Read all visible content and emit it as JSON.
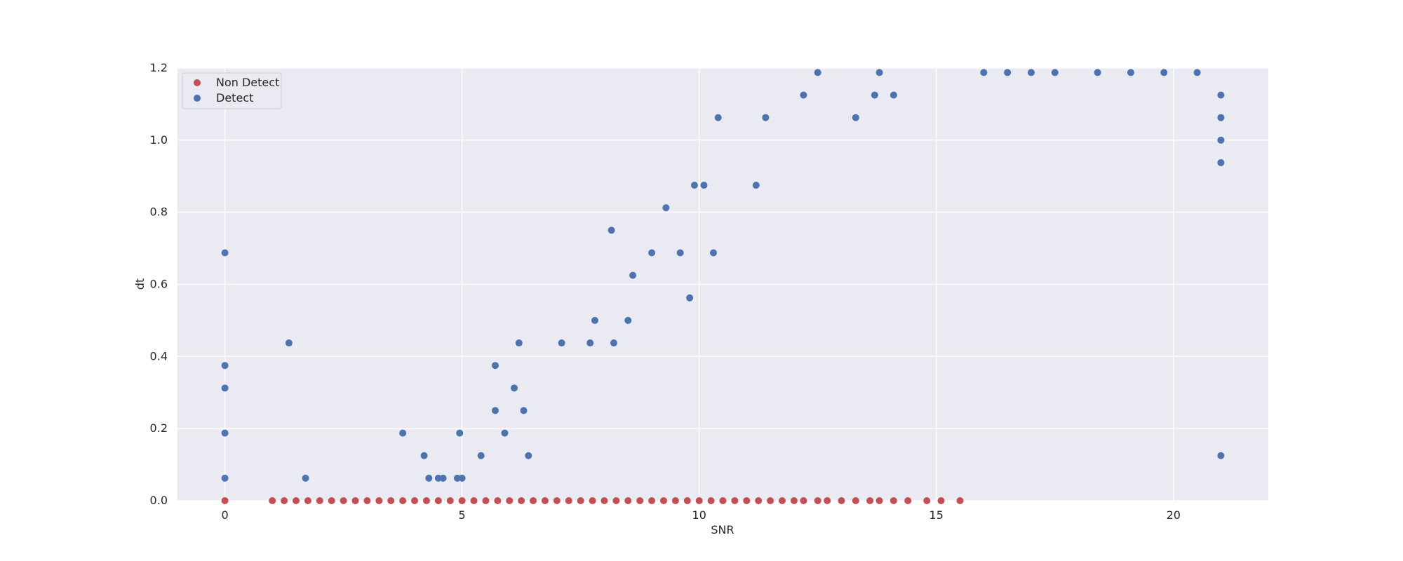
{
  "chart_data": {
    "type": "scatter",
    "title": "",
    "xlabel": "SNR",
    "ylabel": "dt",
    "xlim": [
      -1,
      22
    ],
    "ylim": [
      0,
      1.2
    ],
    "x_ticks": [
      0,
      5,
      10,
      15,
      20
    ],
    "y_ticks": [
      0.0,
      0.2,
      0.4,
      0.6,
      0.8,
      1.0,
      1.2
    ],
    "x_tick_labels": [
      "0",
      "5",
      "10",
      "15",
      "20"
    ],
    "y_tick_labels": [
      "0.0",
      "0.2",
      "0.4",
      "0.6",
      "0.8",
      "1.0",
      "1.2"
    ],
    "grid": true,
    "legend_position": "top-left",
    "colors": {
      "plot_background": "#eaeaf2",
      "grid": "#ffffff",
      "non_detect": "#c44e52",
      "detect": "#4c72b0"
    },
    "series": [
      {
        "name": "Non Detect",
        "color": "#c44e52",
        "x": [
          0,
          1,
          1.25,
          1.5,
          1.75,
          2,
          2.25,
          2.5,
          2.75,
          3,
          3.25,
          3.5,
          3.75,
          4,
          4.25,
          4.5,
          4.75,
          5,
          5.25,
          5.5,
          5.75,
          6,
          6.25,
          6.5,
          6.75,
          7,
          7.25,
          7.5,
          7.75,
          8,
          8.25,
          8.5,
          8.75,
          9,
          9.25,
          9.5,
          9.75,
          10,
          10.25,
          10.5,
          10.75,
          11,
          11.25,
          11.5,
          11.75,
          12,
          12.2,
          12.5,
          12.7,
          13,
          13.3,
          13.6,
          13.8,
          14.1,
          14.4,
          14.8,
          15.1,
          15.5
        ],
        "y": [
          0,
          0,
          0,
          0,
          0,
          0,
          0,
          0,
          0,
          0,
          0,
          0,
          0,
          0,
          0,
          0,
          0,
          0,
          0,
          0,
          0,
          0,
          0,
          0,
          0,
          0,
          0,
          0,
          0,
          0,
          0,
          0,
          0,
          0,
          0,
          0,
          0,
          0,
          0,
          0,
          0,
          0,
          0,
          0,
          0,
          0,
          0,
          0,
          0,
          0,
          0,
          0,
          0,
          0,
          0,
          0,
          0,
          0
        ]
      },
      {
        "name": "Detect",
        "color": "#4c72b0",
        "x": [
          0,
          0,
          0,
          0,
          0,
          1.35,
          1.7,
          3.75,
          4.2,
          4.3,
          4.5,
          4.6,
          4.9,
          5.0,
          4.95,
          5.4,
          5.7,
          5.7,
          5.9,
          6.2,
          6.3,
          6.1,
          6.4,
          7.1,
          7.7,
          7.8,
          8.2,
          8.15,
          8.6,
          8.5,
          9.0,
          9.3,
          9.6,
          9.8,
          9.9,
          10.1,
          10.4,
          10.3,
          11.4,
          11.2,
          12.2,
          12.5,
          13.3,
          13.7,
          13.8,
          14.1,
          16.0,
          16.5,
          17.0,
          17.5,
          18.4,
          19.1,
          19.8,
          20.5,
          21.0,
          21.0,
          21.0,
          21.0,
          21.0
        ],
        "y": [
          0.0625,
          0.1875,
          0.3125,
          0.375,
          0.6875,
          0.4375,
          0.0625,
          0.1875,
          0.125,
          0.0625,
          0.0625,
          0.0625,
          0.0625,
          0.0625,
          0.1875,
          0.125,
          0.25,
          0.375,
          0.1875,
          0.4375,
          0.25,
          0.3125,
          0.125,
          0.4375,
          0.4375,
          0.5,
          0.4375,
          0.75,
          0.625,
          0.5,
          0.6875,
          0.8125,
          0.6875,
          0.5625,
          0.875,
          0.875,
          1.0625,
          0.6875,
          1.0625,
          0.875,
          1.125,
          1.1875,
          1.0625,
          1.125,
          1.1875,
          1.125,
          1.1875,
          1.1875,
          1.1875,
          1.1875,
          1.1875,
          1.1875,
          1.1875,
          1.1875,
          1.125,
          1.0625,
          1.0,
          0.9375,
          0.125
        ]
      }
    ]
  }
}
